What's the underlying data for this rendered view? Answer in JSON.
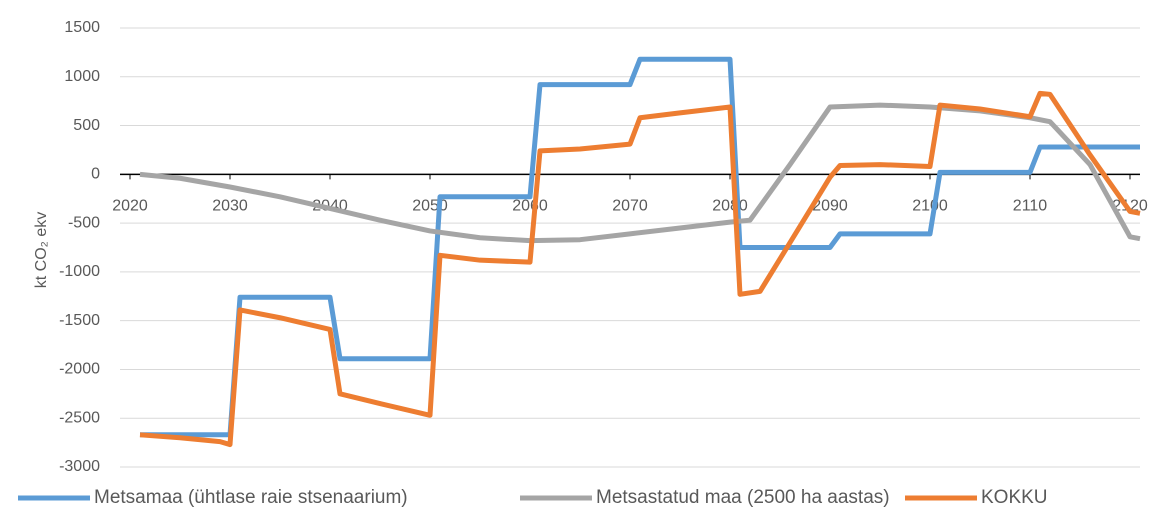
{
  "chart_data": {
    "type": "line",
    "y_label": "kt CO₂ ekv",
    "xlim": [
      2020,
      2120
    ],
    "xticks": [
      2020,
      2030,
      2040,
      2050,
      2060,
      2070,
      2080,
      2090,
      2100,
      2110,
      2120
    ],
    "ylim": [
      -3000,
      1500
    ],
    "yticks": [
      -3000,
      -2500,
      -2000,
      -1500,
      -1000,
      -500,
      0,
      500,
      1000,
      1500
    ],
    "grid": true,
    "legend": "bottom",
    "series": [
      {
        "name": "Metsamaa (ühtlase raie stsenaarium)",
        "color": "#5b9bd5",
        "x": [
          2021,
          2030,
          2031,
          2040,
          2041,
          2050,
          2051,
          2060,
          2061,
          2070,
          2071,
          2080,
          2081,
          2090,
          2091,
          2100,
          2101,
          2110,
          2111,
          2121
        ],
        "values": [
          -2670,
          -2670,
          -1260,
          -1260,
          -1890,
          -1890,
          -230,
          -230,
          920,
          920,
          1180,
          1180,
          -750,
          -750,
          -610,
          -610,
          20,
          20,
          280,
          280
        ]
      },
      {
        "name": "Metsastatud maa (2500 ha aastas)",
        "color": "#a5a5a5",
        "x": [
          2021,
          2025,
          2030,
          2035,
          2040,
          2045,
          2050,
          2055,
          2060,
          2065,
          2070,
          2075,
          2080,
          2082,
          2086,
          2090,
          2095,
          2100,
          2105,
          2110,
          2112,
          2116,
          2120,
          2121
        ],
        "values": [
          0,
          -40,
          -130,
          -230,
          -350,
          -470,
          -580,
          -650,
          -680,
          -670,
          -610,
          -550,
          -490,
          -470,
          100,
          690,
          710,
          690,
          650,
          580,
          540,
          100,
          -640,
          -660
        ]
      },
      {
        "name": "KOKKU",
        "color": "#ed7d31",
        "x": [
          2021,
          2025,
          2029,
          2030,
          2031,
          2035,
          2040,
          2041,
          2045,
          2050,
          2051,
          2055,
          2060,
          2061,
          2065,
          2070,
          2071,
          2075,
          2080,
          2081,
          2083,
          2086,
          2090,
          2091,
          2095,
          2100,
          2101,
          2105,
          2110,
          2111,
          2112,
          2116,
          2120,
          2121
        ],
        "values": [
          -2670,
          -2700,
          -2740,
          -2770,
          -1390,
          -1470,
          -1590,
          -2250,
          -2350,
          -2470,
          -830,
          -880,
          -900,
          240,
          260,
          310,
          580,
          630,
          690,
          -1230,
          -1200,
          -700,
          -30,
          90,
          100,
          80,
          710,
          670,
          590,
          830,
          820,
          200,
          -380,
          -400
        ]
      }
    ]
  }
}
